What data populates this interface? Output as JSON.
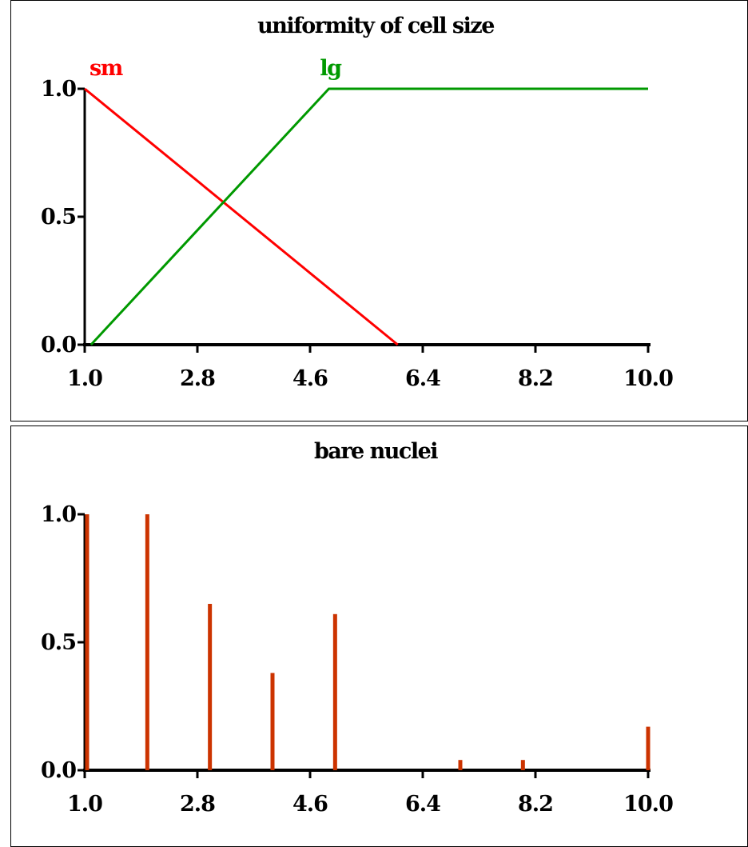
{
  "chart_data": [
    {
      "type": "line",
      "title": "uniformity of cell size",
      "xlabel": "",
      "ylabel": "",
      "xlim": [
        1.0,
        10.0
      ],
      "ylim": [
        0.0,
        1.0
      ],
      "x_ticks": [
        "1.0",
        "2.8",
        "4.6",
        "6.4",
        "8.2",
        "10.0"
      ],
      "y_ticks": [
        "0.0",
        "0.5",
        "1.0"
      ],
      "grid": false,
      "series": [
        {
          "name": "sm",
          "color": "#ff0000",
          "points": [
            [
              1.0,
              1.0
            ],
            [
              6.0,
              0.0
            ]
          ]
        },
        {
          "name": "lg",
          "color": "#009900",
          "points": [
            [
              1.1,
              0.0
            ],
            [
              4.9,
              1.0
            ],
            [
              10.0,
              1.0
            ]
          ]
        }
      ]
    },
    {
      "type": "bar",
      "title": "bare nuclei",
      "xlabel": "",
      "ylabel": "",
      "xlim": [
        1.0,
        10.0
      ],
      "ylim": [
        0.0,
        1.0
      ],
      "x_ticks": [
        "1.0",
        "2.8",
        "4.6",
        "6.4",
        "8.2",
        "10.0"
      ],
      "y_ticks": [
        "0.0",
        "0.5",
        "1.0"
      ],
      "grid": false,
      "bar_color": "#cc3300",
      "x": [
        1.0,
        2.0,
        3.0,
        4.0,
        5.0,
        7.0,
        8.0,
        10.0
      ],
      "values": [
        1.0,
        1.0,
        0.65,
        0.38,
        0.61,
        0.04,
        0.04,
        0.17
      ]
    }
  ]
}
